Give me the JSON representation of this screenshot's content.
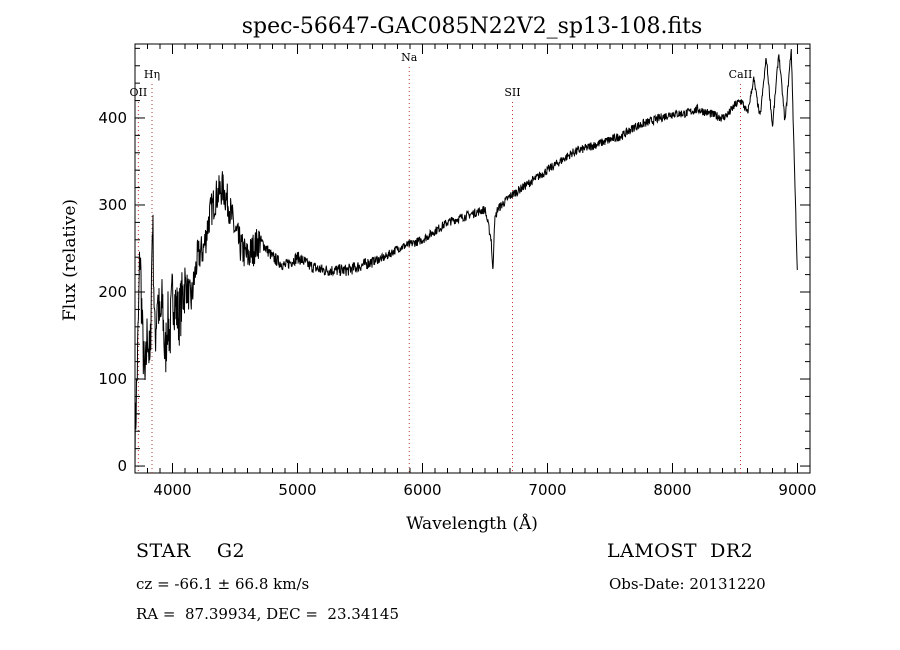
{
  "chart_data": {
    "type": "line",
    "title": "spec-56647-GAC085N22V2_sp13-108.fits",
    "xlabel": "Wavelength (Å)",
    "ylabel": "Flux (relative)",
    "xlim": [
      3700,
      9100
    ],
    "ylim": [
      -8,
      485
    ],
    "xticks": [
      4000,
      5000,
      6000,
      7000,
      8000,
      9000
    ],
    "yticks": [
      0,
      100,
      200,
      300,
      400
    ],
    "grid": false,
    "line_color": "#000000",
    "marker_color": "#c0392b",
    "spectral_lines": [
      {
        "name": "OII",
        "wavelength": 3727,
        "label_level": "low"
      },
      {
        "name": "Hη",
        "wavelength": 3836,
        "label_level": "mid"
      },
      {
        "name": "Na",
        "wavelength": 5894,
        "label_level": "high"
      },
      {
        "name": "SII",
        "wavelength": 6720,
        "label_level": "low"
      },
      {
        "name": "CaII",
        "wavelength": 8544,
        "label_level": "mid"
      }
    ],
    "series": [
      {
        "x": [
          3700,
          3720,
          3740,
          3760,
          3780,
          3800,
          3820,
          3840,
          3860,
          3880,
          3900,
          3920,
          3940,
          3960,
          3980,
          4000,
          4050,
          4100,
          4150,
          4200,
          4250,
          4300,
          4350,
          4400,
          4450,
          4500,
          4550,
          4600,
          4700,
          4800,
          4900,
          5000,
          5100,
          5200,
          5300,
          5400,
          5500,
          5600,
          5700,
          5800,
          5900,
          6000,
          6100,
          6200,
          6300,
          6400,
          6500,
          6550,
          6563,
          6575,
          6600,
          6700,
          6800,
          6900,
          7000,
          7100,
          7200,
          7300,
          7400,
          7500,
          7600,
          7700,
          7800,
          7900,
          8000,
          8100,
          8200,
          8300,
          8400,
          8450,
          8500,
          8550,
          8600,
          8650,
          8700,
          8750,
          8800,
          8850,
          8900,
          8950,
          9000
        ],
        "y": [
          30,
          120,
          250,
          150,
          90,
          160,
          110,
          290,
          140,
          200,
          160,
          190,
          120,
          170,
          150,
          200,
          170,
          210,
          190,
          240,
          250,
          290,
          310,
          320,
          300,
          270,
          250,
          240,
          260,
          240,
          230,
          240,
          230,
          225,
          225,
          225,
          230,
          235,
          240,
          250,
          255,
          260,
          270,
          280,
          285,
          290,
          295,
          260,
          220,
          280,
          295,
          310,
          320,
          330,
          340,
          350,
          360,
          365,
          370,
          375,
          380,
          390,
          395,
          400,
          405,
          405,
          410,
          405,
          400,
          405,
          415,
          420,
          405,
          445,
          400,
          470,
          390,
          475,
          395,
          480,
          215
        ]
      }
    ]
  },
  "footer": {
    "object": "STAR    G2",
    "survey": "LAMOST  DR2",
    "redshift": "cz = -66.1 ± 66.8 km/s",
    "obs_date": "Obs-Date: 20131220",
    "coords": "RA =  87.39934, DEC =  23.34145"
  }
}
